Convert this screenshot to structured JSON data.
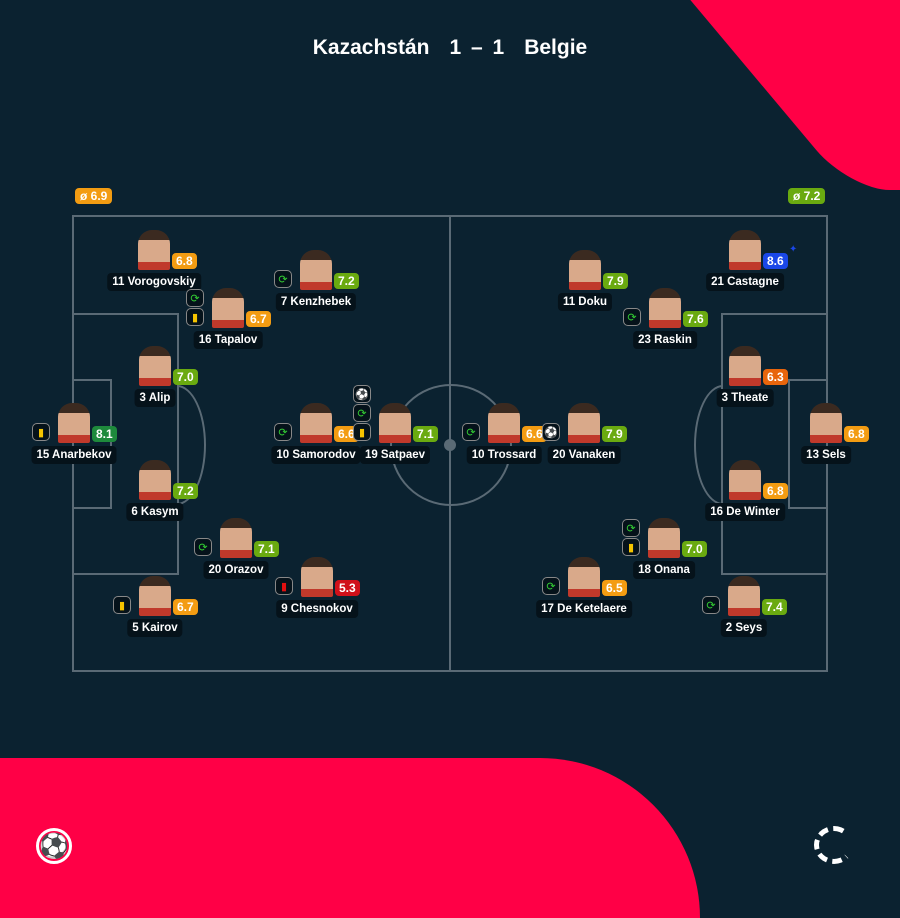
{
  "header": {
    "home": "Kazachstán",
    "score": "1 – 1",
    "away": "Belgie"
  },
  "averages": {
    "home": "ø 6.9",
    "away": "ø 7.2"
  },
  "colors": {
    "accent": "#ff0046",
    "rating_orange": "#f39c12",
    "rating_lightgreen": "#6aaa10",
    "rating_darkgreen": "#1e8a3c",
    "rating_red": "#d0101a",
    "rating_blue": "#1a47e8",
    "rating_darkorange": "#e8650c"
  },
  "players": [
    {
      "label": "11 Vorogovskiy",
      "rating": "6.8",
      "color": "rating_orange",
      "icons": []
    },
    {
      "label": "7 Kenzhebek",
      "rating": "7.2",
      "color": "rating_lightgreen",
      "icons": [
        "substitution-icon"
      ]
    },
    {
      "label": "16 Tapalov",
      "rating": "6.7",
      "color": "rating_orange",
      "icons": [
        "substitution-icon",
        "yellow-card-icon"
      ]
    },
    {
      "label": "3 Alip",
      "rating": "7.0",
      "color": "rating_lightgreen",
      "icons": []
    },
    {
      "label": "15 Anarbekov",
      "rating": "8.1",
      "color": "rating_darkgreen",
      "icons": [
        "yellow-card-icon"
      ]
    },
    {
      "label": "10 Samorodov",
      "rating": "6.6",
      "color": "rating_orange",
      "icons": [
        "substitution-icon"
      ]
    },
    {
      "label": "19 Satpaev",
      "rating": "7.1",
      "color": "rating_lightgreen",
      "icons": [
        "goal-icon",
        "substitution-icon",
        "yellow-card-icon"
      ]
    },
    {
      "label": "6 Kasym",
      "rating": "7.2",
      "color": "rating_lightgreen",
      "icons": []
    },
    {
      "label": "20 Orazov",
      "rating": "7.1",
      "color": "rating_lightgreen",
      "icons": [
        "substitution-icon"
      ]
    },
    {
      "label": "9 Chesnokov",
      "rating": "5.3",
      "color": "rating_red",
      "icons": [
        "red-card-icon"
      ]
    },
    {
      "label": "5 Kairov",
      "rating": "6.7",
      "color": "rating_orange",
      "icons": [
        "yellow-card-icon"
      ]
    },
    {
      "label": "21 Castagne",
      "rating": "8.6",
      "color": "rating_blue",
      "icons": [],
      "star": true
    },
    {
      "label": "11 Doku",
      "rating": "7.9",
      "color": "rating_lightgreen",
      "icons": []
    },
    {
      "label": "23 Raskin",
      "rating": "7.6",
      "color": "rating_lightgreen",
      "icons": [
        "substitution-icon"
      ]
    },
    {
      "label": "3 Theate",
      "rating": "6.3",
      "color": "rating_darkorange",
      "icons": []
    },
    {
      "label": "13 Sels",
      "rating": "6.8",
      "color": "rating_orange",
      "icons": []
    },
    {
      "label": "10 Trossard",
      "rating": "6.6",
      "color": "rating_orange",
      "icons": [
        "substitution-icon"
      ]
    },
    {
      "label": "20 Vanaken",
      "rating": "7.9",
      "color": "rating_lightgreen",
      "icons": [
        "goal-icon"
      ]
    },
    {
      "label": "16 De Winter",
      "rating": "6.8",
      "color": "rating_orange",
      "icons": []
    },
    {
      "label": "18 Onana",
      "rating": "7.0",
      "color": "rating_lightgreen",
      "icons": [
        "substitution-icon",
        "yellow-card-icon"
      ]
    },
    {
      "label": "17 De Ketelaere",
      "rating": "6.5",
      "color": "rating_orange",
      "icons": [
        "substitution-icon"
      ]
    },
    {
      "label": "2 Seys",
      "rating": "7.4",
      "color": "rating_lightgreen",
      "icons": [
        "substitution-icon"
      ]
    }
  ]
}
